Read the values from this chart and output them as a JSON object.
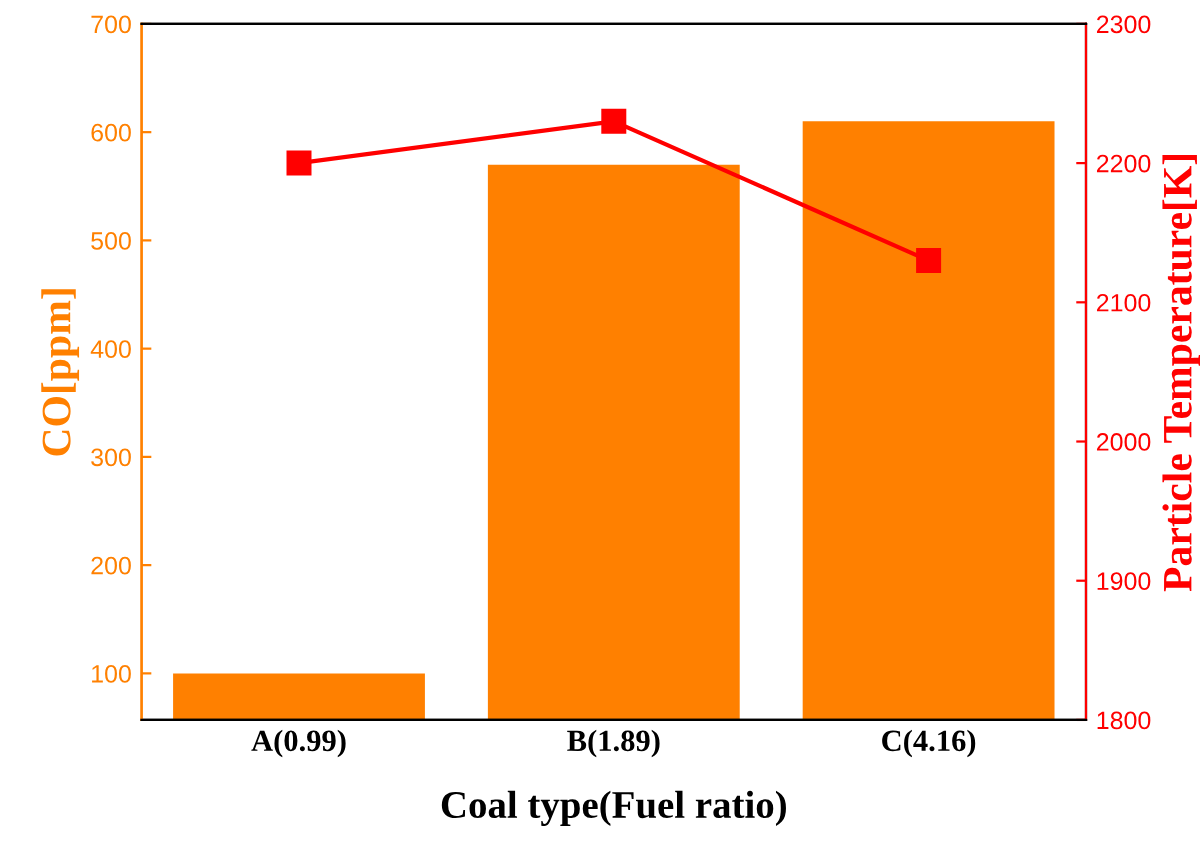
{
  "chart_data": {
    "type": "bar",
    "xlabel": "Coal type(Fuel ratio)",
    "ylabel": "CO[ppm]",
    "y2label": "Particle Temperature[K]",
    "categories": [
      "A(0.99)",
      "B(1.89)",
      "C(4.16)"
    ],
    "ylim": [
      57,
      700
    ],
    "yticks": [
      100,
      200,
      300,
      400,
      500,
      600,
      700
    ],
    "y2lim": [
      1800,
      2300
    ],
    "y2ticks": [
      1800,
      1900,
      2000,
      2100,
      2200,
      2300
    ],
    "grid": false,
    "legend": false,
    "series": [
      {
        "color": "#ff8000",
        "values": [
          100,
          570,
          610
        ]
      },
      {
        "type": "line",
        "axis": "y2",
        "color": "#ff0000",
        "marker": "square",
        "line_style": "solid",
        "values": [
          2200,
          2230,
          2130
        ]
      }
    ]
  }
}
